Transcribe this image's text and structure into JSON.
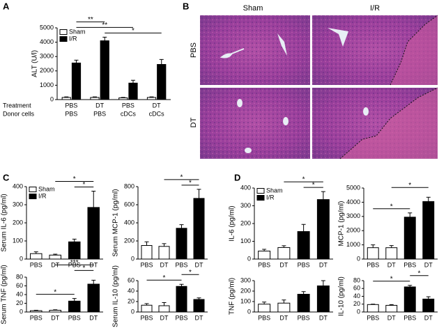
{
  "panel_labels": [
    "A",
    "B",
    "C",
    "D"
  ],
  "histology": {
    "columns": [
      "Sham",
      "I/R"
    ],
    "rows": [
      "PBS",
      "DT"
    ]
  },
  "chart_data": [
    {
      "type": "bar",
      "ylabel": "ALT (U/l)",
      "category_title": "Treatment",
      "categories": [
        "PBS",
        "DT",
        "PBS",
        "DT"
      ],
      "category2_title": "Donor cells",
      "categories2": [
        "PBS",
        "PBS",
        "cDCs",
        "cDCs"
      ],
      "series": [
        {
          "name": "Sham",
          "color": "#ffffff",
          "values": [
            150,
            150,
            120,
            150
          ],
          "errors": [
            40,
            40,
            30,
            40
          ]
        },
        {
          "name": "I/R",
          "color": "#000000",
          "values": [
            2550,
            4100,
            1150,
            2450
          ],
          "errors": [
            200,
            250,
            200,
            350
          ]
        }
      ],
      "ylim": [
        0,
        5000
      ],
      "yticks": [
        0,
        1000,
        2000,
        3000,
        4000,
        5000
      ],
      "legend": "upper left",
      "comparisons": [
        {
          "label": "*",
          "between": [
            1,
            3
          ]
        },
        {
          "label": "**",
          "between": [
            0,
            2
          ]
        },
        {
          "label": "**",
          "between": [
            0,
            1
          ]
        }
      ]
    },
    {
      "type": "bar",
      "ylabel": "Serum IL-6 (pg/ml)",
      "categories": [
        "PBS",
        "DT",
        "PBS",
        "DT"
      ],
      "values": [
        30,
        22,
        95,
        285
      ],
      "errors": [
        10,
        5,
        15,
        90
      ],
      "colors": [
        "#ffffff",
        "#ffffff",
        "#000000",
        "#000000"
      ],
      "legend_entries": [
        {
          "name": "Sham",
          "color": "#ffffff"
        },
        {
          "name": "I/R",
          "color": "#000000"
        }
      ],
      "ylim": [
        0,
        400
      ],
      "yticks": [
        0,
        100,
        200,
        300,
        400
      ],
      "comparisons": [
        {
          "label": "*",
          "between": [
            2,
            3
          ]
        },
        {
          "label": "*",
          "between": [
            1,
            3
          ]
        }
      ]
    },
    {
      "type": "bar",
      "ylabel": "Serum MCP-1 (pg/ml)",
      "categories": [
        "PBS",
        "DT",
        "PBS",
        "DT"
      ],
      "values": [
        150,
        140,
        340,
        670
      ],
      "errors": [
        40,
        30,
        40,
        100
      ],
      "colors": [
        "#ffffff",
        "#ffffff",
        "#000000",
        "#000000"
      ],
      "ylim": [
        0,
        800
      ],
      "yticks": [
        0,
        200,
        400,
        600,
        800
      ],
      "comparisons": [
        {
          "label": "*",
          "between": [
            2,
            3
          ]
        },
        {
          "label": "*",
          "between": [
            1,
            3
          ]
        }
      ]
    },
    {
      "type": "bar",
      "ylabel": "Serum TNF (pg/ml)",
      "categories": [
        "PBS",
        "DT",
        "PBS",
        "DT"
      ],
      "values": [
        3,
        4,
        25,
        64
      ],
      "errors": [
        1,
        1,
        6,
        9
      ],
      "colors": [
        "#ffffff",
        "#ffffff",
        "#000000",
        "#000000"
      ],
      "ylim": [
        0,
        80
      ],
      "yticks": [
        0,
        20,
        40,
        60,
        80
      ],
      "comparisons": [
        {
          "label": "*",
          "between": [
            0,
            2
          ]
        },
        {
          "label": "*",
          "between": [
            2,
            3
          ]
        },
        {
          "label": "***",
          "between": [
            1,
            3
          ]
        }
      ]
    },
    {
      "type": "bar",
      "ylabel": "Serum IL-10 (pg/ml)",
      "categories": [
        "PBS",
        "DT",
        "PBS",
        "DT"
      ],
      "values": [
        13,
        12,
        49,
        24
      ],
      "errors": [
        3,
        6,
        4,
        3
      ],
      "colors": [
        "#ffffff",
        "#ffffff",
        "#000000",
        "#000000"
      ],
      "ylim": [
        0,
        60
      ],
      "yticks": [
        0,
        20,
        40,
        60
      ],
      "comparisons": [
        {
          "label": "*",
          "between": [
            0,
            2
          ]
        },
        {
          "label": "*",
          "between": [
            2,
            3
          ]
        }
      ]
    },
    {
      "type": "bar",
      "ylabel": "IL-6 (pg/ml)",
      "categories": [
        "PBS",
        "DT",
        "PBS",
        "DT"
      ],
      "values": [
        45,
        65,
        155,
        335
      ],
      "errors": [
        10,
        10,
        40,
        45
      ],
      "colors": [
        "#ffffff",
        "#ffffff",
        "#000000",
        "#000000"
      ],
      "legend_entries": [
        {
          "name": "Sham",
          "color": "#ffffff"
        },
        {
          "name": "I/R",
          "color": "#000000"
        }
      ],
      "ylim": [
        0,
        400
      ],
      "yticks": [
        0,
        100,
        200,
        300,
        400
      ],
      "comparisons": [
        {
          "label": "*",
          "between": [
            2,
            3
          ]
        },
        {
          "label": "*",
          "between": [
            1,
            3
          ]
        }
      ]
    },
    {
      "type": "bar",
      "ylabel": "MCP-1 (pg/ml)",
      "categories": [
        "PBS",
        "DT",
        "PBS",
        "DT"
      ],
      "values": [
        800,
        800,
        2950,
        4050
      ],
      "errors": [
        200,
        150,
        300,
        300
      ],
      "colors": [
        "#ffffff",
        "#ffffff",
        "#000000",
        "#000000"
      ],
      "ylim": [
        0,
        5000
      ],
      "yticks": [
        0,
        1000,
        2000,
        3000,
        4000,
        5000
      ],
      "comparisons": [
        {
          "label": "*",
          "between": [
            0,
            2
          ]
        },
        {
          "label": "*",
          "between": [
            1,
            3
          ]
        }
      ]
    },
    {
      "type": "bar",
      "ylabel": "TNF (pg/ml)",
      "categories": [
        "PBS",
        "DT",
        "PBS",
        "DT"
      ],
      "values": [
        75,
        85,
        170,
        250
      ],
      "errors": [
        20,
        30,
        25,
        50
      ],
      "colors": [
        "#ffffff",
        "#ffffff",
        "#000000",
        "#000000"
      ],
      "ylim": [
        0,
        300
      ],
      "yticks": [
        0,
        100,
        200,
        300
      ],
      "comparisons": []
    },
    {
      "type": "bar",
      "ylabel": "IL-10 (pg/ml)",
      "categories": [
        "PBS",
        "DT",
        "PBS",
        "DT"
      ],
      "values": [
        19,
        17,
        64,
        33
      ],
      "errors": [
        1,
        2,
        4,
        6
      ],
      "colors": [
        "#ffffff",
        "#ffffff",
        "#000000",
        "#000000"
      ],
      "ylim": [
        0,
        80
      ],
      "yticks": [
        0,
        20,
        40,
        60,
        80
      ],
      "comparisons": [
        {
          "label": "*",
          "between": [
            0,
            2
          ]
        },
        {
          "label": "*",
          "between": [
            2,
            3
          ]
        }
      ]
    }
  ]
}
